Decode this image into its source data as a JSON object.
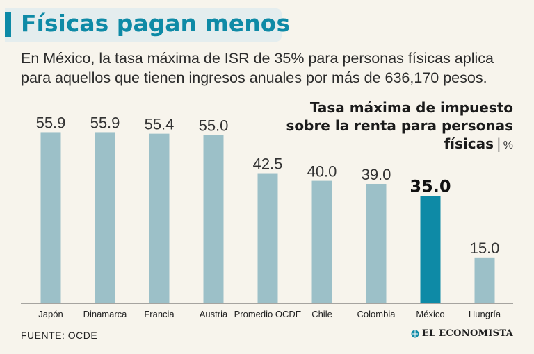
{
  "header": {
    "title": "Físicas pagan menos",
    "subtitle": "En México, la tasa máxima de ISR de 35% para personas físicas aplica para aquellos que tienen ingresos anuales por más de 636,170 pesos."
  },
  "chart_data": {
    "type": "bar",
    "title_line1": "Tasa máxima de impuesto",
    "title_line2": "sobre la renta para personas",
    "title_line3": "físicas",
    "unit": "%",
    "categories": [
      "Japón",
      "Dinamarca",
      "Francia",
      "Austria",
      "Promedio OCDE",
      "Chile",
      "Colombia",
      "México",
      "Hungría"
    ],
    "values": [
      55.9,
      55.9,
      55.4,
      55.0,
      42.5,
      40.0,
      39.0,
      35.0,
      15.0
    ],
    "labels": [
      "55.9",
      "55.9",
      "55.4",
      "55.0",
      "42.5",
      "40.0",
      "39.0",
      "35.0",
      "15.0"
    ],
    "highlight": "México",
    "ylim": [
      0,
      56
    ],
    "bar_color": "#9cc0c8",
    "highlight_color": "#0e8aa6"
  },
  "footer": {
    "source": "FUENTE:  OCDE",
    "logo": "EL ECONOMISTA"
  },
  "colors": {
    "accent": "#0e8aa6",
    "background": "#f7f4ec"
  }
}
